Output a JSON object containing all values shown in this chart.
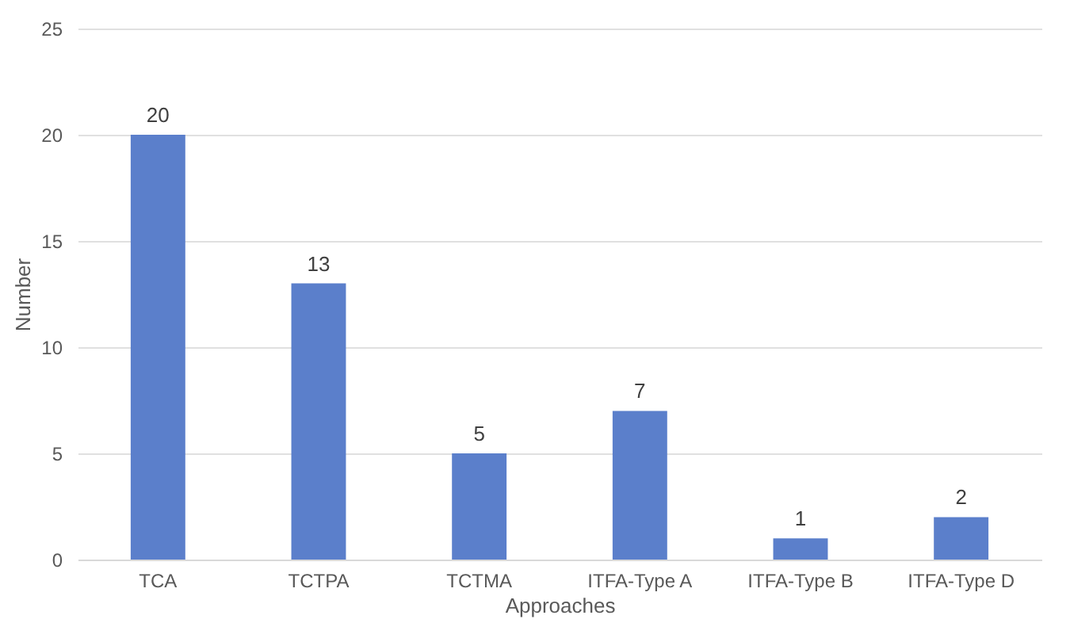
{
  "chart_data": {
    "type": "bar",
    "xlabel": "Approaches",
    "ylabel": "Number",
    "categories": [
      "TCA",
      "TCTPA",
      "TCTMA",
      "ITFA-Type A",
      "ITFA-Type B",
      "ITFA-Type D"
    ],
    "values": [
      20,
      13,
      5,
      7,
      1,
      2
    ],
    "color": "#5b7fcb",
    "ylim": [
      0,
      25
    ],
    "yticks": [
      0,
      5,
      10,
      15,
      20,
      25
    ],
    "grid": "y",
    "data_labels": true
  }
}
